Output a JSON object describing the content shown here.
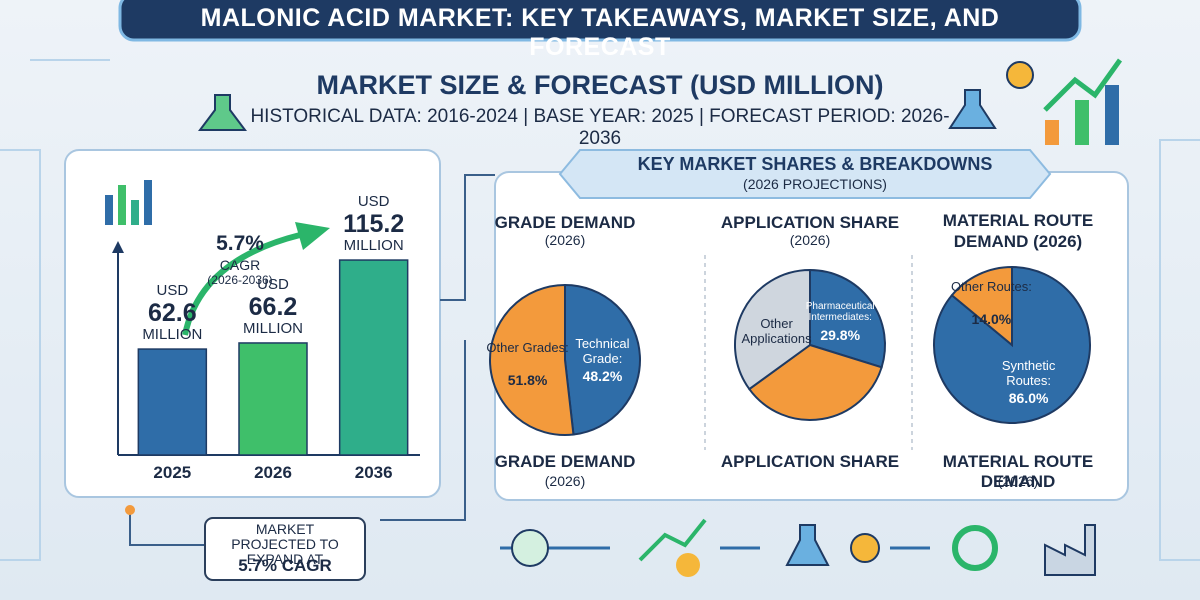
{
  "title": "MALONIC ACID MARKET: KEY TAKEAWAYS, MARKET SIZE, AND FORECAST",
  "section_title": "MARKET SIZE & FORECAST (USD MILLION)",
  "period_note": "HISTORICAL DATA: 2016-2024 | BASE YEAR: 2025 | FORECAST PERIOD: 2026-2036",
  "shares_title": "KEY MARKET SHARES & BREAKDOWNS",
  "shares_subtitle": "(2026 PROJECTIONS)",
  "callout": {
    "text": "MARKET PROJECTED TO EXPAND AT",
    "highlight": "5.7% CAGR"
  },
  "chart_data": [
    {
      "type": "bar",
      "categories": [
        "2025",
        "2026",
        "2036"
      ],
      "values": [
        62.6,
        66.2,
        115.2
      ],
      "value_labels": [
        "USD 62.6 MILLION",
        "USD 66.2 MILLION",
        "USD 115.2 MILLION"
      ],
      "colors": [
        "#2f6da8",
        "#3fbf6a",
        "#2fae8a"
      ],
      "ylim": [
        0,
        130
      ],
      "annotations": [
        "5.7%",
        "CAGR",
        "(2026-2036)"
      ]
    },
    {
      "type": "pie",
      "title": "GRADE DEMAND",
      "subtitle": "(2026)",
      "caption": "GRADE DEMAND",
      "caption_sub": "(2026)",
      "categories": [
        "Technical Grade:",
        "Other Grades:"
      ],
      "values": [
        48.2,
        51.8
      ],
      "value_labels": [
        "48.2%",
        "51.8%"
      ],
      "colors": [
        "#2f6da8",
        "#f39a3c"
      ]
    },
    {
      "type": "pie",
      "title": "APPLICATION SHARE",
      "subtitle": "(2026)",
      "caption": "APPLICATION SHARE",
      "categories": [
        "Pharmaceutical Intermediates:",
        null,
        "Other Applications"
      ],
      "values": [
        29.8,
        35.2,
        35.0
      ],
      "value_labels": [
        "29.8%",
        null,
        null
      ],
      "colors": [
        "#2f6da8",
        "#f39a3c",
        "#cfd6de"
      ]
    },
    {
      "type": "pie",
      "title": "MATERIAL ROUTE DEMAND (2026)",
      "caption": "MATERIAL ROUTE DEMAND",
      "caption_sub": "(2026)",
      "categories": [
        "Synthetic Routes:",
        "Other Routes:"
      ],
      "values": [
        86.0,
        14.0
      ],
      "value_labels": [
        "86.0%",
        "14.0%"
      ],
      "colors": [
        "#2f6da8",
        "#f39a3c"
      ]
    }
  ]
}
